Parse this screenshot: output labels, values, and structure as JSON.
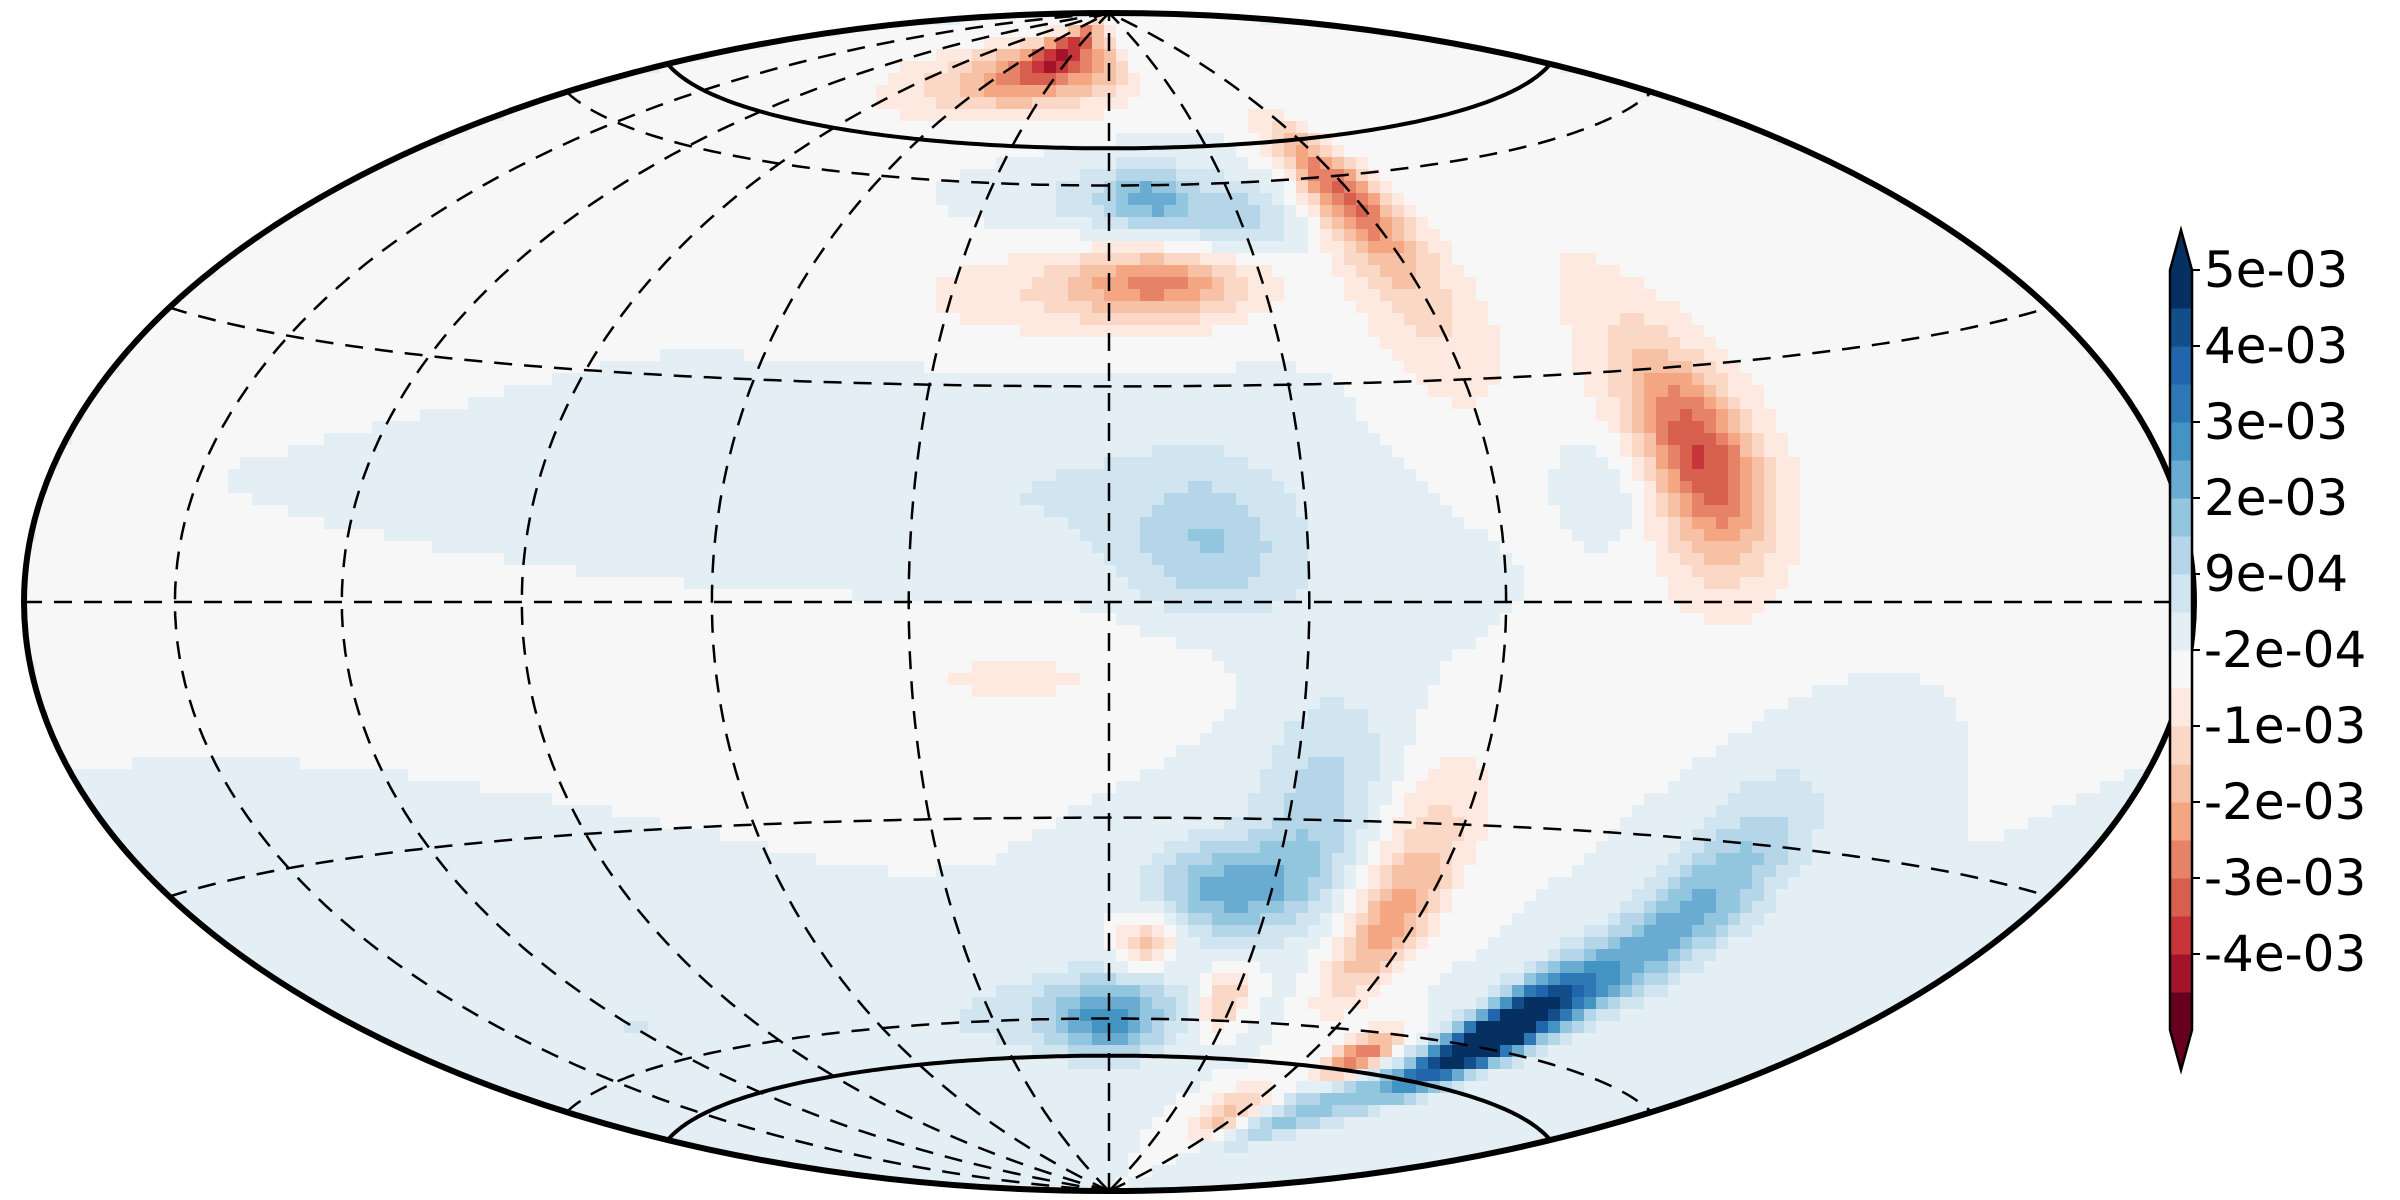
{
  "chart_data": {
    "type": "heatmap",
    "projection": "hammer",
    "title": "",
    "xlabel": "",
    "ylabel": "",
    "graticule": {
      "parallels": [
        -60,
        -30,
        0,
        30,
        60
      ],
      "meridians": [
        -150,
        -120,
        -90,
        -60,
        -30,
        0,
        30,
        60
      ],
      "style": "dashed"
    },
    "region_boundary_latitudes": [
      -66,
      66
    ],
    "colorbar": {
      "orientation": "vertical",
      "placement": "right",
      "colormap": "RdBu",
      "extend": "both",
      "range": [
        -0.005,
        0.005
      ],
      "tick_labels": [
        "5e-03",
        "4e-03",
        "3e-03",
        "2e-03",
        "9e-04",
        "-2e-04",
        "-1e-03",
        "-2e-03",
        "-3e-03",
        "-4e-03"
      ],
      "levels": [
        "#67001f",
        "#a3142b",
        "#c7343a",
        "#d6604d",
        "#e58267",
        "#f4a582",
        "#f7c1a6",
        "#fbd7c5",
        "#fde9df",
        "#f7f7f7",
        "#e3eef5",
        "#d1e5f0",
        "#b5d6e9",
        "#92c5de",
        "#6aabd1",
        "#4393c3",
        "#2e78b5",
        "#2166ac",
        "#144e8a",
        "#053061"
      ],
      "extend_low_color": "#67001f",
      "extend_high_color": "#053061"
    },
    "background_value": 0,
    "features": [
      {
        "lon": -35,
        "lat": 82,
        "value": -0.0032,
        "rlon": 25,
        "rlat": 7
      },
      {
        "lon": 0,
        "lat": 80,
        "value": -0.0012,
        "rlon": 14,
        "rlat": 7
      },
      {
        "lon": -60,
        "lat": 78,
        "value": -0.0018,
        "rlon": 45,
        "rlat": 8
      },
      {
        "lon": 10,
        "lat": 58,
        "value": 0.0016,
        "rlon": 10,
        "rlat": 5
      },
      {
        "lon": 0,
        "lat": 58,
        "value": 0.0008,
        "rlon": 22,
        "rlat": 6
      },
      {
        "lon": 30,
        "lat": 55,
        "value": 0.0012,
        "rlon": 14,
        "rlat": 6
      },
      {
        "lon": 10,
        "lat": 45,
        "value": -0.0022,
        "rlon": 18,
        "rlat": 5
      },
      {
        "lon": -10,
        "lat": 43,
        "value": -0.0008,
        "rlon": 35,
        "rlat": 8
      },
      {
        "lon": 58,
        "lat": 58,
        "value": -0.0024,
        "rlon": 9,
        "rlat": 10
      },
      {
        "lon": 58,
        "lat": 45,
        "value": -0.0012,
        "rlon": 12,
        "rlat": 20
      },
      {
        "lon": 95,
        "lat": 18,
        "value": -0.0028,
        "rlon": 9,
        "rlat": 13
      },
      {
        "lon": 95,
        "lat": 25,
        "value": -0.0008,
        "rlon": 18,
        "rlat": 28
      },
      {
        "lon": 78,
        "lat": 15,
        "value": 0.0007,
        "rlon": 7,
        "rlat": 7
      },
      {
        "lon": 15,
        "lat": 8,
        "value": 0.0012,
        "rlon": 12,
        "rlat": 10
      },
      {
        "lon": -10,
        "lat": 15,
        "value": 0.0005,
        "rlon": 40,
        "rlat": 15
      },
      {
        "lon": -5,
        "lat": -10,
        "value": -0.0006,
        "rlon": 55,
        "rlat": 10
      },
      {
        "lon": 30,
        "lat": -10,
        "value": 0.0005,
        "rlon": 25,
        "rlat": 15
      },
      {
        "lon": 22,
        "lat": -40,
        "value": 0.0022,
        "rlon": 14,
        "rlat": 7
      },
      {
        "lon": 35,
        "lat": -30,
        "value": 0.0012,
        "rlon": 10,
        "rlat": 15
      },
      {
        "lon": 8,
        "lat": -48,
        "value": -0.0018,
        "rlon": 6,
        "rlat": 4
      },
      {
        "lon": 28,
        "lat": -57,
        "value": -0.0018,
        "rlon": 6,
        "rlat": 5
      },
      {
        "lon": 0,
        "lat": -60,
        "value": 0.0024,
        "rlon": 15,
        "rlat": 6
      },
      {
        "lon": -20,
        "lat": -60,
        "value": 0.0006,
        "rlon": 45,
        "rlat": 8
      },
      {
        "lon": 55,
        "lat": -45,
        "value": -0.0022,
        "rlon": 8,
        "rlat": 12
      },
      {
        "lon": 55,
        "lat": -28,
        "value": -0.0008,
        "rlon": 10,
        "rlat": 12
      },
      {
        "lon": 102,
        "lat": -58,
        "value": 0.0065,
        "rlon": 10,
        "rlat": 9
      },
      {
        "lon": 112,
        "lat": -40,
        "value": 0.0022,
        "rlon": 12,
        "rlat": 16
      },
      {
        "lon": 85,
        "lat": -72,
        "value": 0.0018,
        "rlon": 15,
        "rlat": 8
      },
      {
        "lon": 75,
        "lat": -64,
        "value": -0.0035,
        "rlon": 8,
        "rlat": 4
      },
      {
        "lon": 55,
        "lat": -75,
        "value": -0.0018,
        "rlon": 12,
        "rlat": 5
      },
      {
        "lon": -120,
        "lat": -55,
        "value": 0.0005,
        "rlon": 30,
        "rlat": 15
      },
      {
        "lon": -120,
        "lat": 55,
        "value": -0.0005,
        "rlon": 35,
        "rlat": 12
      }
    ]
  },
  "colors": {
    "frame": "#000000",
    "graticule": "#000000",
    "background": "#ffffff"
  }
}
